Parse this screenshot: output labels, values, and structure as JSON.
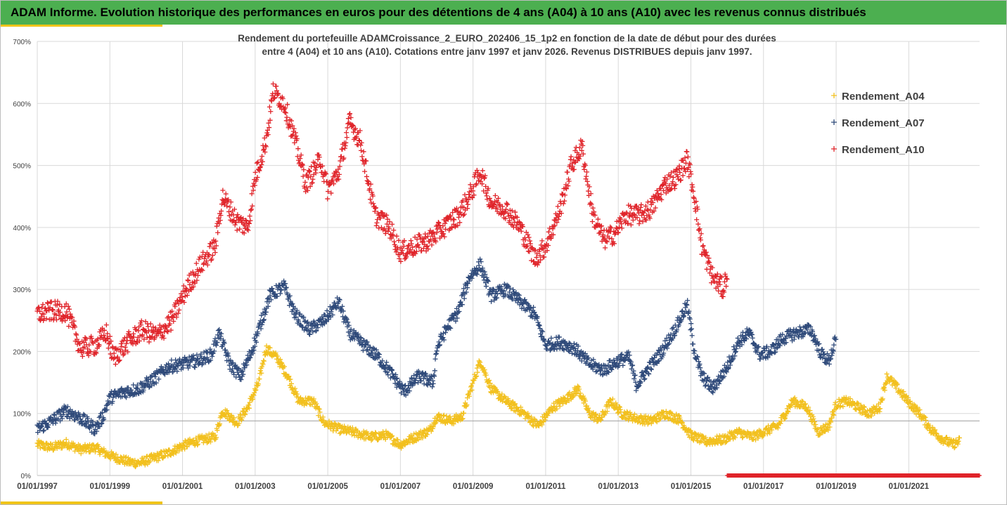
{
  "header": {
    "title": "ADAM Informe. Evolution historique des performances en euros pour des détentions de 4 ans (A04) à 10 ans (A10) avec les revenus connus distribués"
  },
  "colors": {
    "banner": "#4caf50",
    "accent": "#f0c419",
    "A04": "#f2c01e",
    "A07": "#2f4a7a",
    "A10": "#e0242a",
    "grid": "#d9d9d9"
  },
  "chart_data": {
    "type": "scatter",
    "title_lines": [
      "Rendement du portefeuille ADAMCroissance_2_EURO_202406_15_1p2  en fonction de la date de début pour des durées",
      "entre 4 (A04) et 10 ans (A10). Cotations entre janv 1997 et janv 2026. Revenus DISTRIBUES depuis janv 1997."
    ],
    "xlabel": "",
    "ylabel": "",
    "x_range": [
      1997.0,
      2022.95
    ],
    "ylim": [
      0,
      700
    ],
    "y_ticks": [
      "0%",
      "100%",
      "200%",
      "300%",
      "400%",
      "500%",
      "600%",
      "700%"
    ],
    "x_ticks": [
      "01/01/1997",
      "01/01/1999",
      "01/01/2001",
      "01/01/2003",
      "01/01/2005",
      "01/01/2007",
      "01/01/2009",
      "01/01/2011",
      "01/01/2013",
      "01/01/2015",
      "01/01/2017",
      "01/01/2019",
      "01/01/2021"
    ],
    "grid": true,
    "legend_position": "right",
    "series": [
      {
        "name": "Rendement_A04",
        "color": "#f2c01e",
        "x_start": 1997.0,
        "x_end": 2022.4,
        "values": [
          [
            1997.0,
            50
          ],
          [
            1997.4,
            45
          ],
          [
            1997.8,
            52
          ],
          [
            1998.2,
            42
          ],
          [
            1998.6,
            45
          ],
          [
            1998.9,
            35
          ],
          [
            1999.2,
            28
          ],
          [
            1999.5,
            22
          ],
          [
            1999.8,
            20
          ],
          [
            2000.2,
            28
          ],
          [
            2000.6,
            36
          ],
          [
            2001.0,
            48
          ],
          [
            2001.4,
            56
          ],
          [
            2001.9,
            62
          ],
          [
            2002.1,
            105
          ],
          [
            2002.5,
            85
          ],
          [
            2002.8,
            110
          ],
          [
            2003.1,
            150
          ],
          [
            2003.3,
            205
          ],
          [
            2003.6,
            190
          ],
          [
            2003.9,
            160
          ],
          [
            2004.2,
            120
          ],
          [
            2004.6,
            120
          ],
          [
            2004.9,
            85
          ],
          [
            2005.3,
            75
          ],
          [
            2005.7,
            70
          ],
          [
            2006.2,
            62
          ],
          [
            2006.6,
            65
          ],
          [
            2007.0,
            50
          ],
          [
            2007.4,
            62
          ],
          [
            2007.8,
            72
          ],
          [
            2008.0,
            95
          ],
          [
            2008.4,
            88
          ],
          [
            2008.7,
            95
          ],
          [
            2009.0,
            150
          ],
          [
            2009.2,
            185
          ],
          [
            2009.5,
            140
          ],
          [
            2009.9,
            120
          ],
          [
            2010.4,
            100
          ],
          [
            2010.8,
            80
          ],
          [
            2011.2,
            110
          ],
          [
            2011.6,
            125
          ],
          [
            2011.9,
            140
          ],
          [
            2012.2,
            100
          ],
          [
            2012.5,
            90
          ],
          [
            2012.8,
            120
          ],
          [
            2013.1,
            100
          ],
          [
            2013.5,
            92
          ],
          [
            2013.9,
            88
          ],
          [
            2014.3,
            100
          ],
          [
            2014.7,
            90
          ],
          [
            2015.0,
            65
          ],
          [
            2015.4,
            55
          ],
          [
            2015.9,
            58
          ],
          [
            2016.3,
            70
          ],
          [
            2016.7,
            62
          ],
          [
            2017.0,
            70
          ],
          [
            2017.4,
            80
          ],
          [
            2017.8,
            120
          ],
          [
            2018.2,
            110
          ],
          [
            2018.5,
            70
          ],
          [
            2018.8,
            80
          ],
          [
            2019.0,
            115
          ],
          [
            2019.3,
            120
          ],
          [
            2019.6,
            110
          ],
          [
            2019.9,
            100
          ],
          [
            2020.2,
            110
          ],
          [
            2020.4,
            160
          ],
          [
            2020.7,
            140
          ],
          [
            2021.0,
            118
          ],
          [
            2021.3,
            100
          ],
          [
            2021.6,
            75
          ],
          [
            2021.9,
            60
          ],
          [
            2022.2,
            50
          ],
          [
            2022.4,
            55
          ]
        ]
      },
      {
        "name": "Rendement_A07",
        "color": "#2f4a7a",
        "x_start": 1997.0,
        "x_end": 2019.0,
        "values": [
          [
            1997.0,
            75
          ],
          [
            1997.4,
            88
          ],
          [
            1997.8,
            105
          ],
          [
            1998.2,
            92
          ],
          [
            1998.6,
            75
          ],
          [
            1998.8,
            95
          ],
          [
            1999.0,
            125
          ],
          [
            1999.4,
            135
          ],
          [
            1999.8,
            140
          ],
          [
            2000.2,
            155
          ],
          [
            2000.6,
            175
          ],
          [
            2001.0,
            180
          ],
          [
            2001.4,
            185
          ],
          [
            2001.8,
            195
          ],
          [
            2002.0,
            230
          ],
          [
            2002.3,
            180
          ],
          [
            2002.6,
            160
          ],
          [
            2002.9,
            200
          ],
          [
            2003.1,
            235
          ],
          [
            2003.4,
            290
          ],
          [
            2003.8,
            305
          ],
          [
            2004.1,
            260
          ],
          [
            2004.5,
            235
          ],
          [
            2004.9,
            250
          ],
          [
            2005.3,
            280
          ],
          [
            2005.6,
            230
          ],
          [
            2006.0,
            210
          ],
          [
            2006.4,
            190
          ],
          [
            2006.8,
            160
          ],
          [
            2007.1,
            135
          ],
          [
            2007.5,
            160
          ],
          [
            2007.9,
            150
          ],
          [
            2008.0,
            205
          ],
          [
            2008.3,
            240
          ],
          [
            2008.6,
            265
          ],
          [
            2008.9,
            320
          ],
          [
            2009.2,
            340
          ],
          [
            2009.5,
            290
          ],
          [
            2009.9,
            300
          ],
          [
            2010.3,
            280
          ],
          [
            2010.7,
            260
          ],
          [
            2011.0,
            210
          ],
          [
            2011.4,
            215
          ],
          [
            2011.8,
            205
          ],
          [
            2012.2,
            180
          ],
          [
            2012.6,
            170
          ],
          [
            2013.0,
            185
          ],
          [
            2013.3,
            190
          ],
          [
            2013.5,
            145
          ],
          [
            2013.8,
            170
          ],
          [
            2014.2,
            200
          ],
          [
            2014.6,
            240
          ],
          [
            2014.9,
            275
          ],
          [
            2015.1,
            200
          ],
          [
            2015.3,
            160
          ],
          [
            2015.6,
            140
          ],
          [
            2016.0,
            175
          ],
          [
            2016.3,
            215
          ],
          [
            2016.6,
            230
          ],
          [
            2016.9,
            195
          ],
          [
            2017.2,
            200
          ],
          [
            2017.5,
            220
          ],
          [
            2017.9,
            230
          ],
          [
            2018.3,
            235
          ],
          [
            2018.6,
            195
          ],
          [
            2018.8,
            185
          ],
          [
            2019.0,
            220
          ]
        ]
      },
      {
        "name": "Rendement_A10",
        "color": "#e0242a",
        "x_start": 1997.0,
        "x_end": 2016.0,
        "values": [
          [
            1997.0,
            260
          ],
          [
            1997.4,
            265
          ],
          [
            1997.8,
            265
          ],
          [
            1998.2,
            205
          ],
          [
            1998.6,
            210
          ],
          [
            1998.9,
            230
          ],
          [
            1999.1,
            190
          ],
          [
            1999.5,
            215
          ],
          [
            1999.9,
            235
          ],
          [
            2000.3,
            225
          ],
          [
            2000.7,
            250
          ],
          [
            2001.1,
            300
          ],
          [
            2001.5,
            340
          ],
          [
            2001.9,
            370
          ],
          [
            2002.1,
            450
          ],
          [
            2002.5,
            410
          ],
          [
            2002.8,
            400
          ],
          [
            2003.0,
            480
          ],
          [
            2003.3,
            540
          ],
          [
            2003.5,
            620
          ],
          [
            2003.8,
            600
          ],
          [
            2004.1,
            540
          ],
          [
            2004.4,
            470
          ],
          [
            2004.8,
            510
          ],
          [
            2005.0,
            460
          ],
          [
            2005.3,
            490
          ],
          [
            2005.6,
            570
          ],
          [
            2005.9,
            540
          ],
          [
            2006.3,
            420
          ],
          [
            2006.7,
            400
          ],
          [
            2007.0,
            360
          ],
          [
            2007.4,
            370
          ],
          [
            2007.8,
            380
          ],
          [
            2008.2,
            400
          ],
          [
            2008.6,
            420
          ],
          [
            2008.9,
            450
          ],
          [
            2009.2,
            490
          ],
          [
            2009.5,
            440
          ],
          [
            2009.9,
            430
          ],
          [
            2010.3,
            400
          ],
          [
            2010.7,
            350
          ],
          [
            2011.0,
            370
          ],
          [
            2011.4,
            430
          ],
          [
            2011.7,
            500
          ],
          [
            2012.0,
            530
          ],
          [
            2012.3,
            420
          ],
          [
            2012.6,
            380
          ],
          [
            2012.9,
            390
          ],
          [
            2013.2,
            420
          ],
          [
            2013.6,
            420
          ],
          [
            2013.9,
            430
          ],
          [
            2014.3,
            470
          ],
          [
            2014.6,
            480
          ],
          [
            2014.9,
            510
          ],
          [
            2015.1,
            450
          ],
          [
            2015.3,
            370
          ],
          [
            2015.6,
            320
          ],
          [
            2015.9,
            300
          ],
          [
            2016.0,
            330
          ]
        ]
      },
      {
        "name": "zero_baseline",
        "color": "#e0242a",
        "x_start": 2016.0,
        "x_end": 2022.95,
        "values": [
          [
            2016.0,
            0
          ],
          [
            2022.95,
            0
          ]
        ]
      }
    ]
  }
}
